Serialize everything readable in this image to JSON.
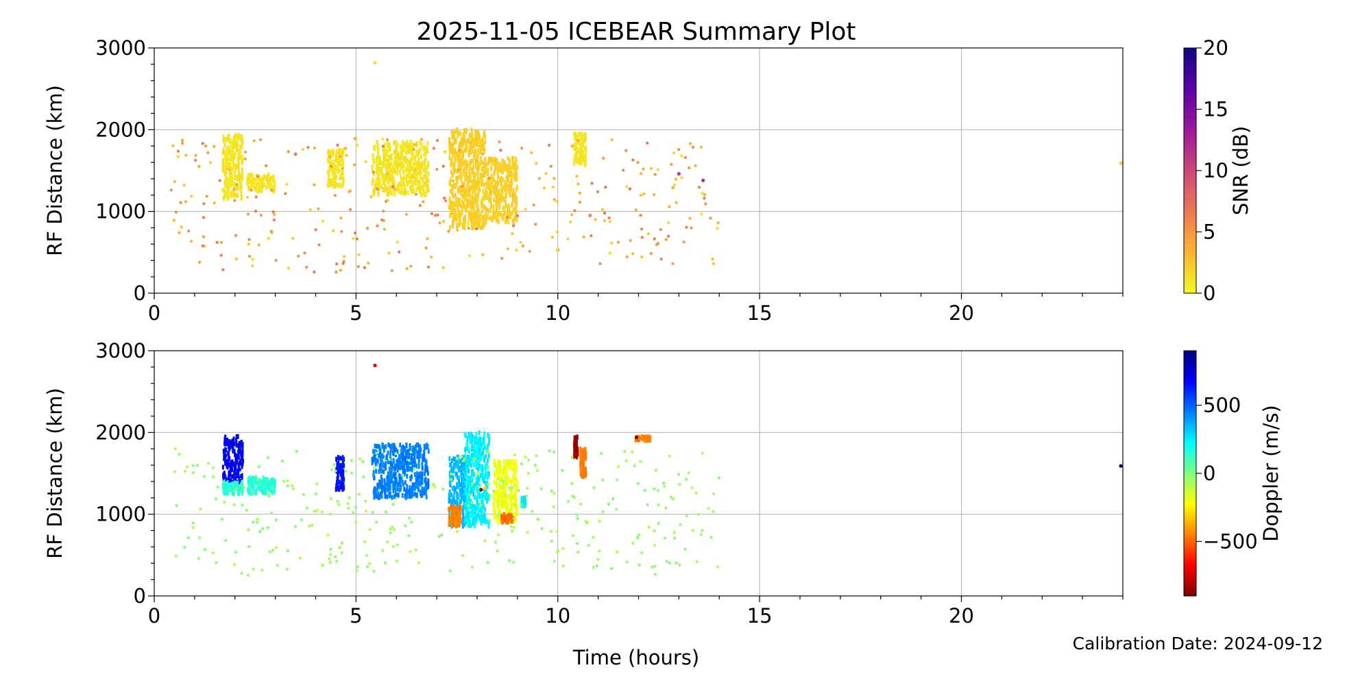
{
  "title": "2025-11-05 ICEBEAR Summary Plot",
  "xlabel": "Time (hours)",
  "calibration": "Calibration Date: 2024-09-12",
  "colors": {
    "grid": "#b0b0b0",
    "axis": "#000000"
  },
  "chart_data": [
    {
      "type": "scatter",
      "name": "snr-panel",
      "ylabel": "RF Distance (km)",
      "xlim": [
        0,
        24
      ],
      "ylim": [
        0,
        3000
      ],
      "xticks": [
        0,
        5,
        10,
        15,
        20
      ],
      "yticks": [
        0,
        1000,
        2000,
        3000
      ],
      "grid": true,
      "colorbar": {
        "label": "SNR (dB)",
        "range": [
          0,
          20
        ],
        "ticks": [
          0,
          5,
          10,
          15,
          20
        ],
        "tick_labels": [
          "0",
          "5",
          "10",
          "15",
          "20"
        ],
        "colormap": "plasma_r",
        "stops": [
          "#f0f921",
          "#fdb42f",
          "#ed7953",
          "#cc4778",
          "#9c179e",
          "#5c01a6",
          "#0d0887"
        ]
      },
      "clusters": [
        {
          "x": [
            1.7,
            2.2
          ],
          "y": [
            1150,
            1950
          ],
          "value": 1
        },
        {
          "x": [
            2.3,
            3.0
          ],
          "y": [
            1250,
            1450
          ],
          "value": 1
        },
        {
          "x": [
            4.3,
            4.7
          ],
          "y": [
            1300,
            1750
          ],
          "value": 1
        },
        {
          "x": [
            5.4,
            6.8
          ],
          "y": [
            1200,
            1850
          ],
          "value": 1
        },
        {
          "x": [
            7.3,
            8.2
          ],
          "y": [
            800,
            2000
          ],
          "value": 2
        },
        {
          "x": [
            8.2,
            9.0
          ],
          "y": [
            850,
            1650
          ],
          "value": 2
        },
        {
          "x": [
            10.4,
            10.7
          ],
          "y": [
            1550,
            1950
          ],
          "value": 1
        }
      ],
      "scatter_region": {
        "x": [
          0.4,
          14.0
        ],
        "y": [
          250,
          1900
        ]
      },
      "scatter_value_range": [
        1,
        7
      ],
      "points": [
        {
          "x": 5.47,
          "y": 2820,
          "value": 1
        },
        {
          "x": 23.95,
          "y": 1590,
          "value": 2
        },
        {
          "x": 13.6,
          "y": 1380,
          "value": 12
        },
        {
          "x": 13.0,
          "y": 1460,
          "value": 11
        },
        {
          "x": 3.5,
          "y": 1700,
          "value": 6
        },
        {
          "x": 10.8,
          "y": 950,
          "value": 6
        }
      ]
    },
    {
      "type": "scatter",
      "name": "doppler-panel",
      "ylabel": "RF Distance (km)",
      "xlim": [
        0,
        24
      ],
      "ylim": [
        0,
        3000
      ],
      "xticks": [
        0,
        5,
        10,
        15,
        20
      ],
      "yticks": [
        0,
        1000,
        2000,
        3000
      ],
      "grid": true,
      "colorbar": {
        "label": "Doppler (m/s)",
        "range": [
          -900,
          900
        ],
        "ticks": [
          -500,
          0,
          500
        ],
        "tick_labels": [
          "−500",
          "0",
          "500"
        ],
        "colormap": "jet_r",
        "stops": [
          "#7f0000",
          "#ff0000",
          "#ff7f00",
          "#ffff00",
          "#7fff7f",
          "#00ffff",
          "#007fff",
          "#0000ff",
          "#00007f"
        ]
      },
      "clusters": [
        {
          "x": [
            1.7,
            2.2
          ],
          "y": [
            1350,
            1950
          ],
          "value": 700
        },
        {
          "x": [
            1.7,
            2.2
          ],
          "y": [
            1250,
            1400
          ],
          "value": 150
        },
        {
          "x": [
            2.3,
            3.0
          ],
          "y": [
            1250,
            1450
          ],
          "value": 150
        },
        {
          "x": [
            4.5,
            4.7
          ],
          "y": [
            1300,
            1700
          ],
          "value": 650
        },
        {
          "x": [
            5.4,
            6.8
          ],
          "y": [
            1200,
            1850
          ],
          "value": 450
        },
        {
          "x": [
            7.3,
            7.8
          ],
          "y": [
            850,
            1700
          ],
          "value": 350
        },
        {
          "x": [
            7.3,
            7.6
          ],
          "y": [
            850,
            1100
          ],
          "value": -450
        },
        {
          "x": [
            7.7,
            8.3
          ],
          "y": [
            850,
            2000
          ],
          "value": 250
        },
        {
          "x": [
            8.4,
            9.0
          ],
          "y": [
            900,
            1650
          ],
          "value": -200
        },
        {
          "x": [
            8.6,
            8.9
          ],
          "y": [
            900,
            1000
          ],
          "value": -500
        },
        {
          "x": [
            9.1,
            9.2
          ],
          "y": [
            1100,
            1200
          ],
          "value": 250
        },
        {
          "x": [
            10.4,
            10.5
          ],
          "y": [
            1700,
            1950
          ],
          "value": -850
        },
        {
          "x": [
            10.55,
            10.7
          ],
          "y": [
            1450,
            1800
          ],
          "value": -450
        },
        {
          "x": [
            11.9,
            12.3
          ],
          "y": [
            1900,
            1950
          ],
          "value": -450
        }
      ],
      "scatter_region": {
        "x": [
          0.4,
          14.0
        ],
        "y": [
          250,
          1800
        ]
      },
      "scatter_value_range": [
        -100,
        0
      ],
      "points": [
        {
          "x": 5.47,
          "y": 2820,
          "value": -700
        },
        {
          "x": 23.95,
          "y": 1590,
          "value": 880
        },
        {
          "x": 11.95,
          "y": 1940,
          "value": -900
        },
        {
          "x": 8.1,
          "y": 1300,
          "value": -850
        },
        {
          "x": 8.2,
          "y": 1320,
          "value": -300
        }
      ]
    }
  ]
}
